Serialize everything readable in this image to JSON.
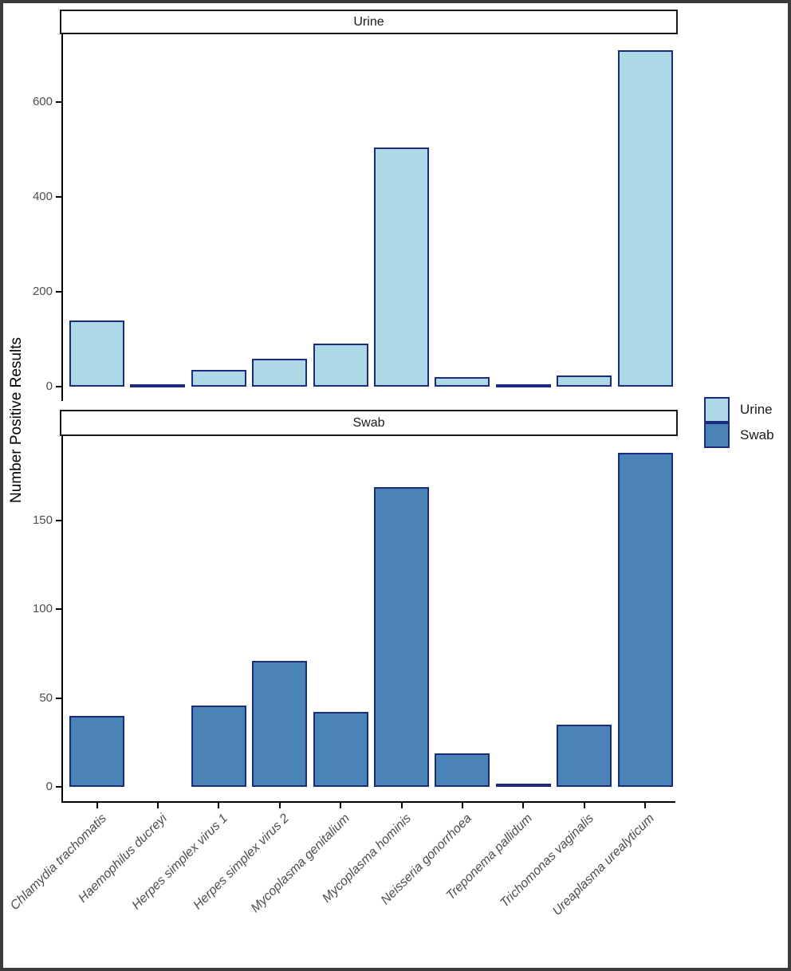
{
  "figure": {
    "colors": {
      "urine_fill": "#ADD8E6",
      "swab_fill": "#4A83B5",
      "bar_border": "#1B2B7E",
      "outer_border": "#3C3C3C",
      "axis_line": "#000000",
      "tick_label": "#4D4D4D",
      "strip_background": "#FFFFFF",
      "strip_border": "#1A1A1A"
    }
  },
  "legend": {
    "items": [
      {
        "label": "Urine",
        "color": "#ADD8E6"
      },
      {
        "label": "Swab",
        "color": "#4A83B5"
      }
    ]
  },
  "chart_data": {
    "type": "bar",
    "title": "",
    "xlabel": "",
    "ylabel": "Number Positive Results",
    "grid": false,
    "legend_position": "right",
    "categories": [
      "Chlamydia trachomatis",
      "Haemophilus ducreyi",
      "Herpes simplex virus 1",
      "Herpes simplex virus 2",
      "Mycoplasma genitalium",
      "Mycoplasma hominis",
      "Neisseria gonorrhoea",
      "Treponema pallidum",
      "Trichomonas vaginalis",
      "Ureaplasma urealyticum"
    ],
    "facets": [
      {
        "title": "Urine",
        "fill": "#ADD8E6",
        "values": [
          140,
          1,
          35,
          58,
          90,
          505,
          20,
          1,
          23,
          710
        ],
        "yticks": [
          0,
          200,
          400,
          600
        ],
        "ylim": [
          0,
          745
        ]
      },
      {
        "title": "Swab",
        "fill": "#4A83B5",
        "values": [
          40,
          0,
          46,
          71,
          42,
          169,
          19,
          2,
          35,
          188
        ],
        "yticks": [
          0,
          50,
          100,
          150
        ],
        "ylim": [
          0,
          198
        ]
      }
    ]
  }
}
